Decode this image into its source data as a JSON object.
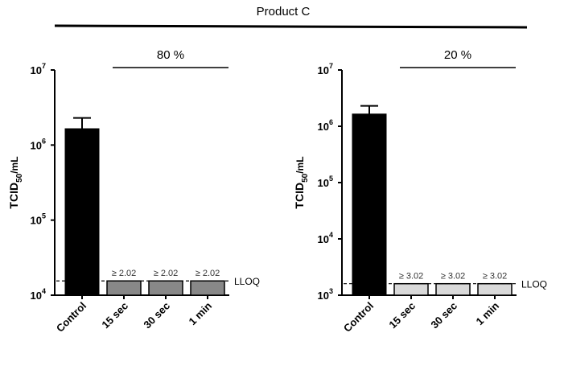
{
  "figure_title": "Product C",
  "chart_data": [
    {
      "type": "bar",
      "group_label": "80 %",
      "ylabel": "TCID50/mL",
      "ylabel_base": "TCID",
      "ylabel_sub": "50",
      "ylabel_unit": "/mL",
      "yscale": "log",
      "ylim": [
        10000,
        10000000
      ],
      "yticks": [
        {
          "base": "10",
          "exp": "4",
          "value": 10000
        },
        {
          "base": "10",
          "exp": "5",
          "value": 100000
        },
        {
          "base": "10",
          "exp": "6",
          "value": 1000000
        },
        {
          "base": "10",
          "exp": "7",
          "value": 10000000
        }
      ],
      "categories": [
        "Control",
        "15 sec",
        "30 sec",
        "1 min"
      ],
      "values": [
        1650000,
        15500,
        15500,
        15500
      ],
      "errors_upper": [
        2300000,
        null,
        null,
        null
      ],
      "bar_colors": [
        "#000000",
        "#888888",
        "#888888",
        "#888888"
      ],
      "annotations": [
        "",
        "≥ 2.02",
        "≥ 2.02",
        "≥ 2.02"
      ],
      "reference_line": {
        "label": "LLOQ",
        "value": 15500,
        "style": "dashed"
      }
    },
    {
      "type": "bar",
      "group_label": "20 %",
      "ylabel": "TCID50/mL",
      "ylabel_base": "TCID",
      "ylabel_sub": "50",
      "ylabel_unit": "/mL",
      "yscale": "log",
      "ylim": [
        1000,
        10000000
      ],
      "yticks": [
        {
          "base": "10",
          "exp": "3",
          "value": 1000
        },
        {
          "base": "10",
          "exp": "4",
          "value": 10000
        },
        {
          "base": "10",
          "exp": "5",
          "value": 100000
        },
        {
          "base": "10",
          "exp": "6",
          "value": 1000000
        },
        {
          "base": "10",
          "exp": "7",
          "value": 10000000
        }
      ],
      "categories": [
        "Control",
        "15 sec",
        "30 sec",
        "1 min"
      ],
      "values": [
        1650000,
        1600,
        1600,
        1600
      ],
      "errors_upper": [
        2300000,
        null,
        null,
        null
      ],
      "bar_colors": [
        "#000000",
        "#d9d9d9",
        "#d9d9d9",
        "#d9d9d9"
      ],
      "annotations": [
        "",
        "≥ 3.02",
        "≥ 3.02",
        "≥ 3.02"
      ],
      "reference_line": {
        "label": "LLOQ",
        "value": 1600,
        "style": "dashed"
      }
    }
  ]
}
